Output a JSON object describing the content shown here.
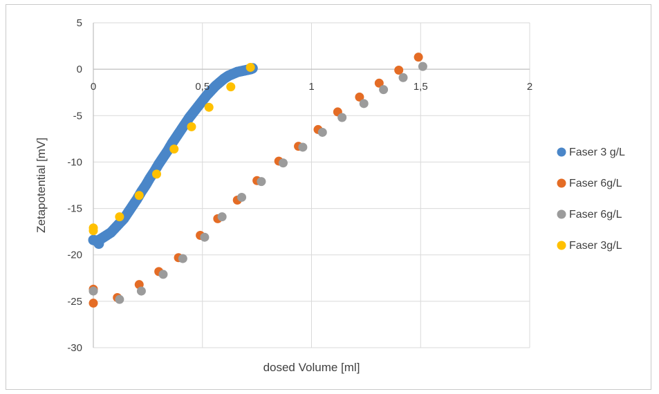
{
  "chart_data": {
    "type": "scatter",
    "title": "",
    "xlabel": "dosed Volume [ml]",
    "ylabel": "Zetapotential [mV]",
    "xlim": [
      0,
      2
    ],
    "ylim": [
      -30,
      5
    ],
    "xticks": [
      0,
      0.5,
      1,
      1.5,
      2
    ],
    "xtick_labels": [
      "0",
      "0,5",
      "1",
      "1,5",
      "2"
    ],
    "yticks": [
      5,
      0,
      -5,
      -10,
      -15,
      -20,
      -25,
      -30
    ],
    "ytick_labels": [
      "5",
      "0",
      "-5",
      "-10",
      "-15",
      "-20",
      "-25",
      "-30"
    ],
    "grid": true,
    "legend_position": "right",
    "series": [
      {
        "name": "Faser 3 g/L",
        "color": "#4a86c8",
        "dense": true,
        "x": [
          0.0,
          0.02,
          0.04,
          0.06,
          0.08,
          0.1,
          0.12,
          0.14,
          0.16,
          0.18,
          0.2,
          0.22,
          0.24,
          0.26,
          0.28,
          0.3,
          0.32,
          0.34,
          0.36,
          0.38,
          0.4,
          0.42,
          0.44,
          0.46,
          0.48,
          0.5,
          0.52,
          0.54,
          0.56,
          0.58,
          0.6,
          0.62,
          0.64,
          0.66,
          0.68,
          0.7,
          0.72,
          0.73,
          0.025
        ],
        "y": [
          -18.4,
          -18.5,
          -18.2,
          -17.9,
          -17.6,
          -17.1,
          -16.6,
          -16.1,
          -15.4,
          -14.7,
          -14.0,
          -13.2,
          -12.5,
          -11.7,
          -11.0,
          -10.2,
          -9.5,
          -8.8,
          -8.0,
          -7.3,
          -6.6,
          -5.9,
          -5.2,
          -4.6,
          -4.0,
          -3.4,
          -2.8,
          -2.3,
          -1.8,
          -1.4,
          -1.0,
          -0.7,
          -0.5,
          -0.3,
          -0.2,
          -0.1,
          0.0,
          0.1,
          -18.8
        ]
      },
      {
        "name": "Faser 6g/L",
        "color": "#e46c25",
        "x": [
          0.0,
          0.0,
          0.11,
          0.21,
          0.3,
          0.39,
          0.49,
          0.57,
          0.66,
          0.75,
          0.85,
          0.94,
          1.03,
          1.12,
          1.22,
          1.31,
          1.4,
          1.49
        ],
        "y": [
          -25.2,
          -23.7,
          -24.6,
          -23.2,
          -21.8,
          -20.3,
          -17.9,
          -16.1,
          -14.1,
          -12.0,
          -9.9,
          -8.3,
          -6.5,
          -4.6,
          -3.0,
          -1.5,
          -0.1,
          1.3
        ]
      },
      {
        "name": "Faser 6g/L",
        "color": "#9b9b9b",
        "x": [
          0.0,
          0.12,
          0.22,
          0.32,
          0.41,
          0.51,
          0.59,
          0.68,
          0.77,
          0.87,
          0.96,
          1.05,
          1.14,
          1.24,
          1.33,
          1.42,
          1.51
        ],
        "y": [
          -23.9,
          -24.8,
          -23.9,
          -22.1,
          -20.4,
          -18.1,
          -15.9,
          -13.8,
          -12.1,
          -10.1,
          -8.4,
          -6.8,
          -5.2,
          -3.7,
          -2.2,
          -0.9,
          0.3
        ]
      },
      {
        "name": "Faser 3g/L",
        "color": "#ffc000",
        "x": [
          0.0,
          0.0,
          0.12,
          0.21,
          0.29,
          0.37,
          0.45,
          0.53,
          0.63,
          0.72
        ],
        "y": [
          -17.4,
          -17.1,
          -15.9,
          -13.6,
          -11.3,
          -8.6,
          -6.2,
          -4.1,
          -1.9,
          0.2
        ]
      }
    ]
  }
}
